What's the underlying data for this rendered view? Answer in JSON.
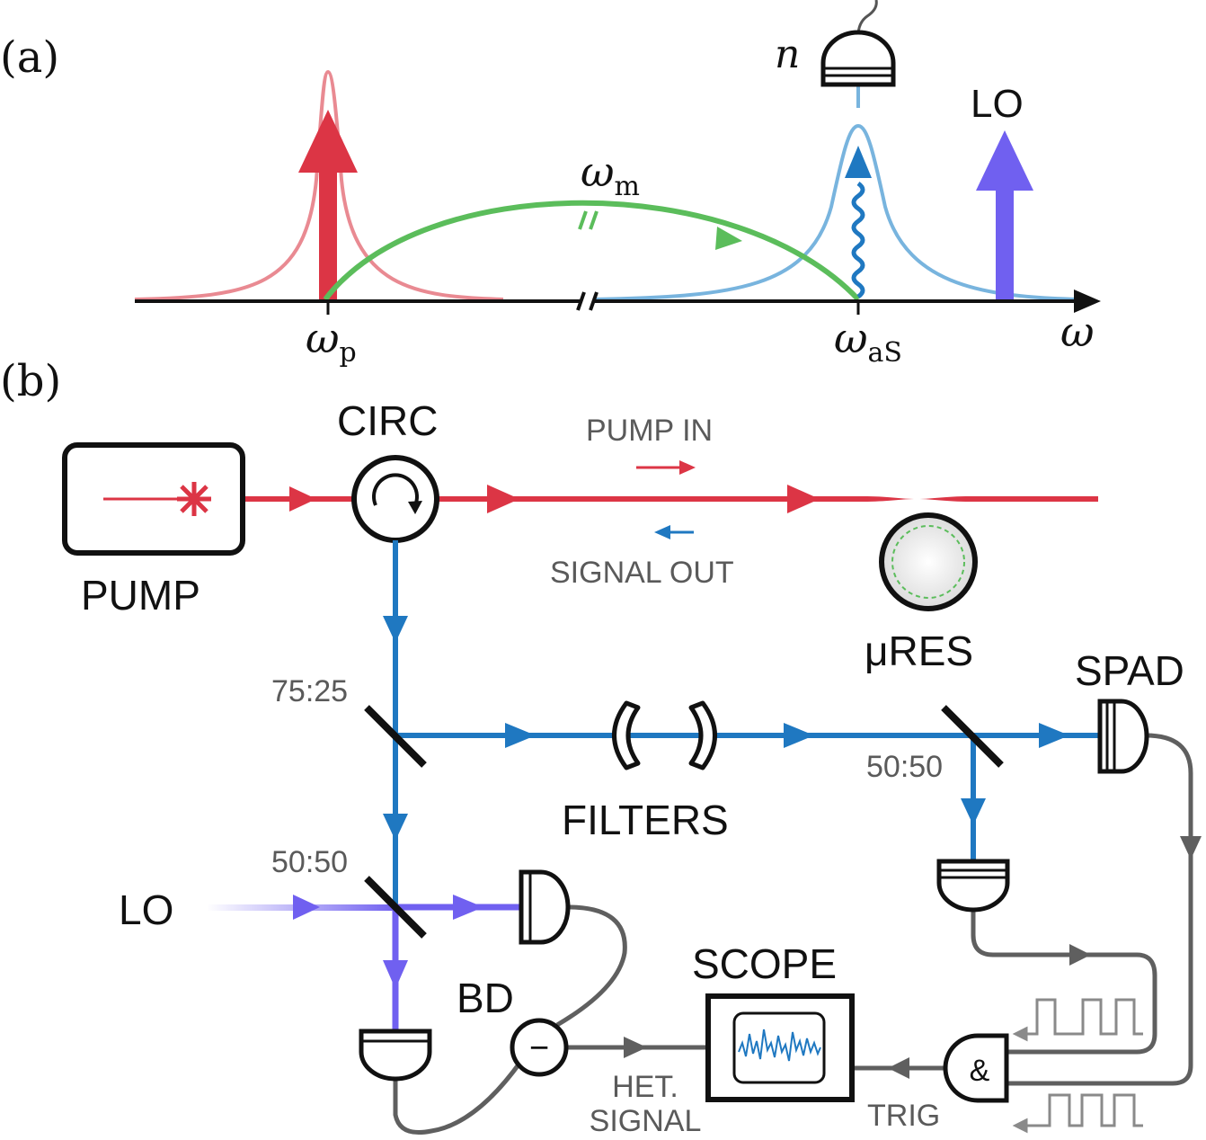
{
  "panel_a": {
    "tag": "(a)",
    "omega_m": "ω",
    "omega_m_sub": "m",
    "omega_p": "ω",
    "omega_p_sub": "p",
    "omega_as": "ω",
    "omega_as_sub": "aS",
    "omega_axis": "ω",
    "detector_n": "n",
    "lo": "LO"
  },
  "panel_b": {
    "tag": "(b)",
    "pump": "PUMP",
    "circ": "CIRC",
    "pump_in": "PUMP IN",
    "signal_out": "SIGNAL OUT",
    "ures": "μRES",
    "spad": "SPAD",
    "split_7525": "75:25",
    "split_5050_a": "50:50",
    "split_5050_b": "50:50",
    "filters": "FILTERS",
    "lo": "LO",
    "bd": "BD",
    "scope": "SCOPE",
    "het_line1": "HET.",
    "het_line2": "SIGNAL",
    "trig": "TRIG",
    "and_symbol": "&",
    "minus_symbol": "−"
  },
  "colors": {
    "pump_red": "#dc3545",
    "pump_red_light": "#e98a92",
    "signal_blue": "#1f78c1",
    "signal_blue_light": "#78b4de",
    "mechanical_green": "#5bbd5b",
    "lo_violet": "#7060f0",
    "electrical_grey": "#5f5f5f"
  }
}
